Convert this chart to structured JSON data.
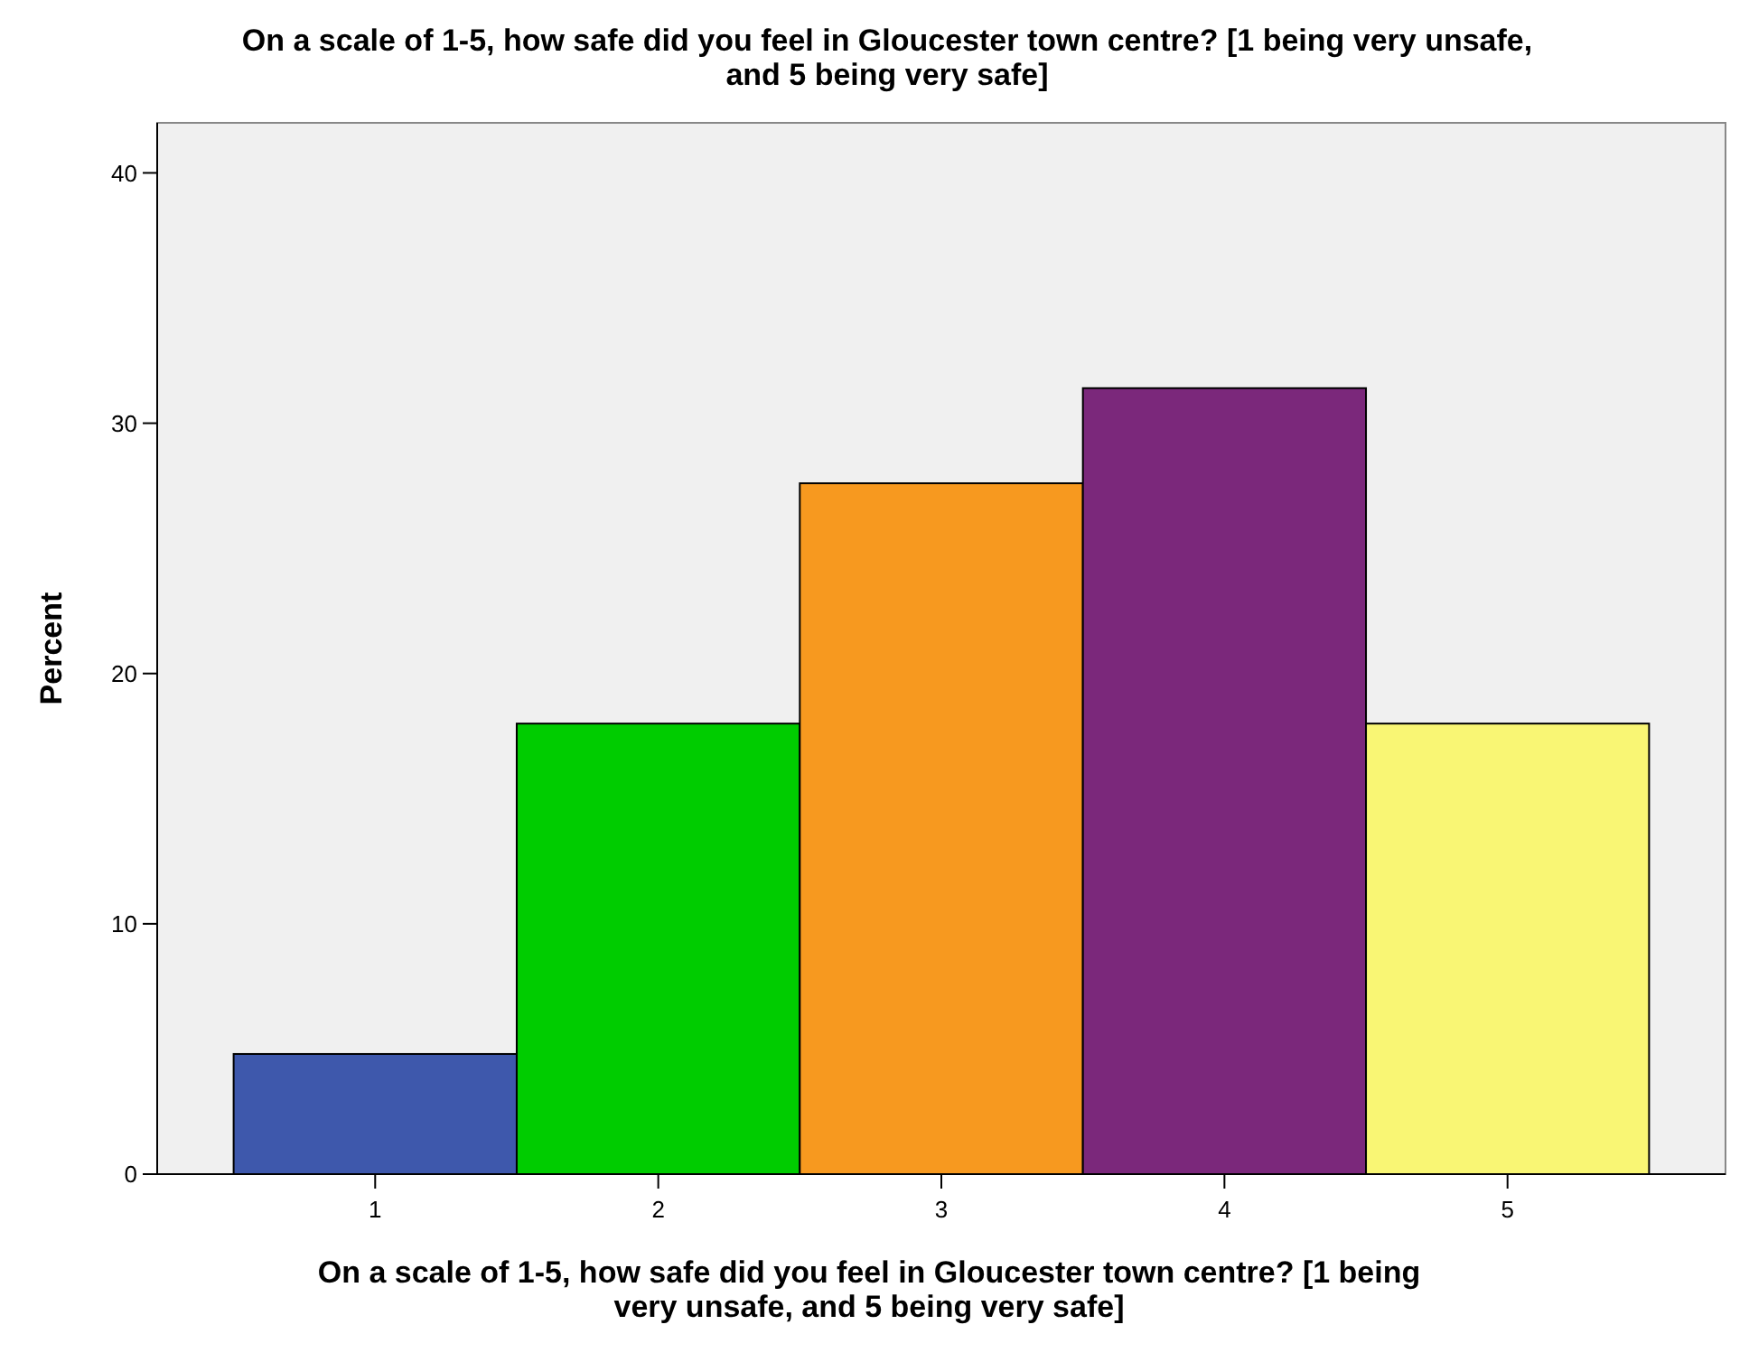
{
  "chart_data": {
    "type": "bar",
    "title": "On a scale of 1-5, how safe did you feel in Gloucester town centre? [1 being very unsafe, and 5 being very safe]",
    "xlabel": "On a scale of 1-5, how safe did you feel in Gloucester town centre? [1 being very unsafe, and 5 being very safe]",
    "ylabel": "Percent",
    "categories": [
      "1",
      "2",
      "3",
      "4",
      "5"
    ],
    "values": [
      4.8,
      18.0,
      27.6,
      31.4,
      18.0
    ],
    "colors": [
      "#3e58ac",
      "#00cc00",
      "#f7991f",
      "#7b287b",
      "#f9f674"
    ],
    "ylim": [
      0,
      42
    ],
    "yticks": [
      0,
      10,
      20,
      30,
      40
    ],
    "grid": false
  }
}
